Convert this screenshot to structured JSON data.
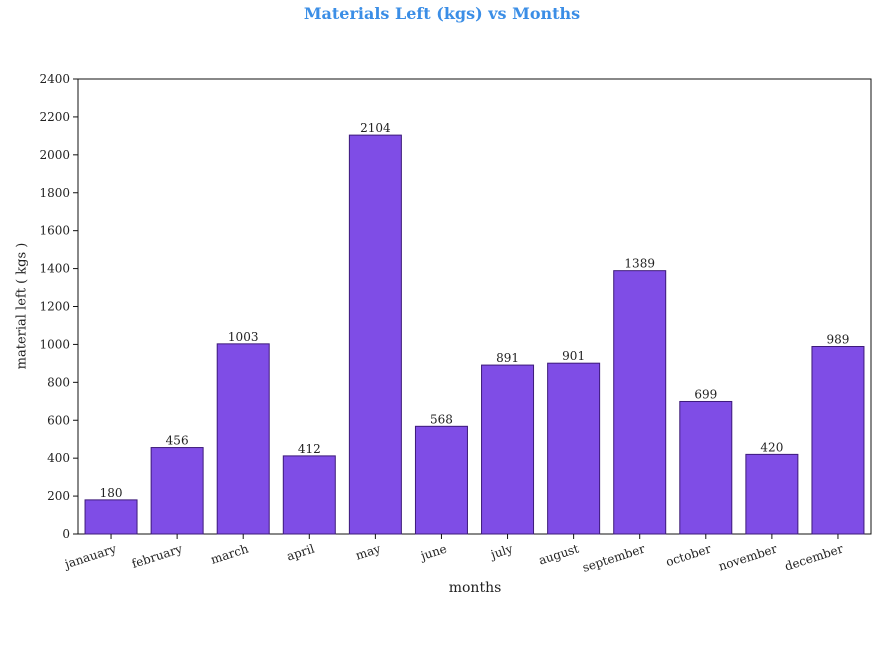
{
  "chart_data": {
    "type": "bar",
    "title": "Materials Left (kgs) vs Months",
    "xlabel": "months",
    "ylabel": "material left ( kgs )",
    "categories": [
      "janauary",
      "february",
      "march",
      "april",
      "may",
      "june",
      "july",
      "august",
      "september",
      "october",
      "november",
      "december"
    ],
    "values": [
      180,
      456,
      1003,
      412,
      2104,
      568,
      891,
      901,
      1389,
      699,
      420,
      989
    ],
    "ylim": [
      0,
      2400
    ],
    "yticks": [
      0,
      200,
      400,
      600,
      800,
      1000,
      1200,
      1400,
      1600,
      1800,
      2000,
      2200,
      2400
    ],
    "bar_color": "#7f4de6",
    "bar_edge_color": "#3d1a7a",
    "title_color": "#3b8ee6"
  }
}
